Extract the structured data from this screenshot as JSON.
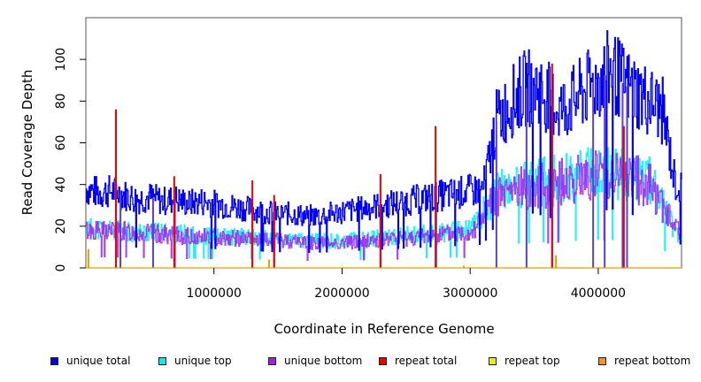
{
  "chart_data": {
    "type": "line",
    "title": "",
    "xlabel": "Coordinate in Reference Genome",
    "ylabel": "Read Coverage Depth",
    "xlim": [
      0,
      4650000
    ],
    "ylim": [
      0,
      120
    ],
    "x_ticks": [
      1000000,
      2000000,
      3000000,
      4000000
    ],
    "x_tick_labels": [
      "1000000",
      "2000000",
      "3000000",
      "4000000"
    ],
    "y_ticks": [
      0,
      20,
      40,
      60,
      80,
      100
    ],
    "y_tick_labels": [
      "0",
      "20",
      "40",
      "60",
      "80",
      "100"
    ],
    "grid": false,
    "legend_position": "bottom",
    "series": [
      {
        "name": "unique total",
        "color": "#0000ee",
        "x": [
          0,
          100000,
          200000,
          300000,
          400000,
          500000,
          600000,
          700000,
          800000,
          900000,
          1000000,
          1100000,
          1200000,
          1300000,
          1400000,
          1500000,
          1600000,
          1700000,
          1800000,
          1900000,
          2000000,
          2100000,
          2200000,
          2300000,
          2400000,
          2500000,
          2600000,
          2700000,
          2800000,
          2900000,
          3000000,
          3100000,
          3200000,
          3300000,
          3400000,
          3500000,
          3600000,
          3700000,
          3800000,
          3900000,
          4000000,
          4100000,
          4200000,
          4300000,
          4400000,
          4500000,
          4600000,
          4650000
        ],
        "values": [
          38,
          36,
          37,
          35,
          33,
          34,
          32,
          33,
          31,
          32,
          31,
          30,
          29,
          28,
          27,
          26,
          26,
          25,
          25,
          26,
          27,
          28,
          29,
          30,
          31,
          32,
          33,
          34,
          35,
          36,
          37,
          38,
          70,
          78,
          85,
          88,
          82,
          76,
          80,
          85,
          90,
          95,
          88,
          84,
          80,
          75,
          40,
          38
        ]
      },
      {
        "name": "unique top",
        "color": "#00eeee",
        "x": [
          0,
          200000,
          400000,
          600000,
          800000,
          1000000,
          1200000,
          1400000,
          1600000,
          1800000,
          2000000,
          2200000,
          2400000,
          2600000,
          2800000,
          3000000,
          3200000,
          3400000,
          3600000,
          3800000,
          4000000,
          4200000,
          4400000,
          4600000,
          4650000
        ],
        "values": [
          19,
          18,
          17,
          17,
          16,
          15,
          15,
          14,
          13,
          13,
          13,
          14,
          15,
          16,
          17,
          18,
          36,
          40,
          42,
          44,
          46,
          45,
          42,
          18,
          16
        ]
      },
      {
        "name": "unique bottom",
        "color": "#a020f0",
        "x": [
          0,
          200000,
          400000,
          600000,
          800000,
          1000000,
          1200000,
          1400000,
          1600000,
          1800000,
          2000000,
          2200000,
          2400000,
          2600000,
          2800000,
          3000000,
          3200000,
          3400000,
          3600000,
          3800000,
          4000000,
          4200000,
          4400000,
          4600000,
          4650000
        ],
        "values": [
          18,
          18,
          17,
          16,
          15,
          15,
          14,
          13,
          13,
          12,
          12,
          13,
          14,
          15,
          16,
          17,
          34,
          38,
          40,
          42,
          45,
          44,
          40,
          19,
          17
        ]
      },
      {
        "name": "repeat total",
        "color": "#ee0000",
        "x": [
          235000,
          690000,
          1300000,
          1470000,
          2300000,
          2730000,
          3640000,
          4200000
        ],
        "values": [
          76,
          44,
          42,
          35,
          45,
          68,
          98,
          68
        ]
      },
      {
        "name": "repeat top",
        "color": "#eeee00",
        "x": [],
        "values": []
      },
      {
        "name": "repeat bottom",
        "color": "#ee9a00",
        "x": [
          0,
          20000,
          1430000,
          2950000,
          3670000
        ],
        "values": [
          0,
          9,
          4,
          1,
          6
        ]
      }
    ]
  },
  "legend": [
    {
      "label": "unique total",
      "color": "#0000ee"
    },
    {
      "label": "unique top",
      "color": "#00eeee"
    },
    {
      "label": "unique bottom",
      "color": "#a020f0"
    },
    {
      "label": "repeat total",
      "color": "#ee0000"
    },
    {
      "label": "repeat top",
      "color": "#eeee00"
    },
    {
      "label": "repeat bottom",
      "color": "#ee9a00"
    }
  ]
}
